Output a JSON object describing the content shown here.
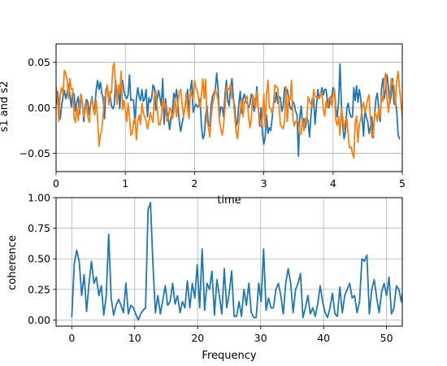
{
  "chart_data": [
    {
      "type": "line",
      "title": "",
      "xlabel": "time",
      "ylabel": "s1 and s2",
      "xlim": [
        0,
        5
      ],
      "ylim": [
        -0.07,
        0.07
      ],
      "grid": true,
      "x_ticks": [
        "0",
        "1",
        "2",
        "3",
        "4",
        "5"
      ],
      "y_ticks": [
        "−0.05",
        "0.00",
        "0.05"
      ],
      "x_start": 0,
      "x_step": 0.02,
      "series": [
        {
          "color": "#1f77b4",
          "values": [
            0.004,
            0.018,
            0.006,
            -0.012,
            0.002,
            0.012,
            0.019,
            0.01,
            0.016,
            0.026,
            0.014,
            0.001,
            0.017,
            0.015,
            -0.004,
            0.006,
            0.012,
            -0.007,
            0.015,
            0.005,
            -0.015,
            0.002,
            0.009,
            0.006,
            -0.008,
            0.005,
            0.012,
            -0.002,
            0.001,
            0.02,
            0.03,
            0.02,
            0.028,
            0.016,
            0.01,
            -0.012,
            0.02,
            0.024,
            0.008,
            0.013,
            0.002,
            -0.001,
            0.003,
            0.03,
            0.012,
            0.021,
            -0.001,
            0.025,
            0.03,
            0.018,
            0.013,
            0.01,
            0.014,
            0.036,
            0.008,
            0.009,
            0.008,
            -0.018,
            0.01,
            0.022,
            0.012,
            0.008,
            0.02,
            0.007,
            0.01,
            0.02,
            -0.01,
            0.011,
            0.006,
            0.01,
            0.025,
            0.022,
            -0.003,
            0.009,
            0.019,
            0.011,
            0.002,
            0.032,
            -0.018,
            0.01,
            -0.004,
            -0.01,
            -0.024,
            -0.011,
            -0.005,
            0.016,
            0.01,
            0.02,
            0.003,
            -0.016,
            -0.026,
            -0.017,
            -0.01,
            0.0,
            0.01,
            0.02,
            -0.01,
            0.02,
            0.03,
            -0.005,
            0.001,
            0.004,
            0.001,
            0.002,
            0.01,
            -0.021,
            -0.034,
            -0.03,
            -0.008,
            0.002,
            -0.02,
            -0.02,
            0.003,
            0.013,
            0.016,
            0.021,
            0.038,
            0.02,
            -0.01,
            0.001,
            0.0,
            -0.01,
            0.015,
            0.03,
            0.008,
            0.002,
            0.022,
            0.032,
            0.011,
            0.001,
            -0.02,
            -0.015,
            0.005,
            0.018,
            -0.006,
            0.01,
            0.015,
            0.006,
            0.005,
            0.0,
            0.004,
            0.015,
            0.01,
            -0.004,
            0.005,
            0.023,
            0.0,
            -0.02,
            0.0,
            -0.028,
            -0.04,
            -0.032,
            -0.008,
            -0.028,
            -0.022,
            -0.025,
            -0.012,
            0.005,
            0.006,
            0.017,
            0.005,
            0.012,
            0.011,
            -0.004,
            0.002,
            0.022,
            0.016,
            0.02,
            0.01,
            0.0,
            -0.002,
            0.007,
            0.004,
            -0.004,
            -0.008,
            -0.053,
            -0.01,
            0.002,
            -0.02,
            -0.012,
            -0.022,
            -0.01,
            -0.015,
            -0.032,
            -0.01,
            0.01,
            0.01,
            -0.018,
            0.002,
            0.02,
            0.01,
            0.014,
            0.022,
            0.014,
            0.02,
            0.02,
            0.005,
            0.0,
            0.01,
            0.012,
            0.022,
            0.02,
            -0.001,
            -0.01,
            0.006,
            0.048,
            0.005,
            -0.02,
            -0.034,
            -0.025,
            0.0,
            0.005,
            -0.006,
            -0.01,
            -0.01,
            0.022,
            0.008,
            0.024,
            0.006,
            0.02,
            0.01,
            -0.011,
            -0.031,
            -0.003,
            -0.01,
            -0.015,
            -0.028,
            -0.021,
            -0.01,
            -0.033,
            -0.006,
            0.01,
            0.016,
            -0.002,
            -0.015,
            0.021,
            0.032,
            0.01,
            0.021,
            0.036,
            0.022,
            0.005,
            0.014,
            0.032,
            0.004,
            0.009,
            -0.004,
            -0.03,
            -0.034
          ]
        },
        {
          "color": "#ff7f0e",
          "values": [
            0.022,
            0.01,
            -0.015,
            0.015,
            0.022,
            0.015,
            0.041,
            0.038,
            0.03,
            0.01,
            0.032,
            0.02,
            0.021,
            -0.011,
            -0.016,
            0.002,
            -0.014,
            0.003,
            0.015,
            0.005,
            -0.01,
            -0.004,
            0.005,
            -0.01,
            -0.016,
            0.003,
            0.01,
            -0.003,
            -0.008,
            0.008,
            -0.012,
            -0.042,
            -0.03,
            -0.024,
            -0.007,
            0.012,
            0.014,
            0.025,
            0.003,
            0.018,
            0.016,
            0.045,
            0.049,
            0.022,
            0.004,
            0.025,
            0.016,
            0.04,
            -0.002,
            0.008,
            -0.002,
            -0.015,
            0.005,
            -0.01,
            -0.03,
            -0.028,
            -0.014,
            -0.012,
            -0.035,
            -0.015,
            -0.008,
            -0.018,
            0.005,
            -0.005,
            -0.01,
            -0.015,
            -0.023,
            -0.015,
            -0.005,
            -0.011,
            -0.016,
            0.013,
            0.019,
            0.0,
            -0.018,
            -0.019,
            -0.01,
            0.01,
            0.0,
            0.004,
            -0.015,
            -0.012,
            0.0,
            -0.002,
            -0.012,
            -0.005,
            0.01,
            -0.01,
            0.005,
            0.018,
            0.02,
            0.005,
            -0.01,
            0.0,
            0.016,
            -0.002,
            -0.012,
            0.018,
            0.013,
            0.01,
            0.03,
            0.022,
            0.018,
            0.009,
            0.0,
            0.014,
            0.032,
            0.01,
            0.031,
            -0.015,
            -0.021,
            -0.032,
            -0.01,
            0.004,
            0.011,
            0.02,
            0.015,
            0.008,
            -0.015,
            -0.023,
            -0.03,
            -0.018,
            0.0,
            0.023,
            0.021,
            0.02,
            0.026,
            0.01,
            0.01,
            -0.01,
            -0.026,
            -0.034,
            -0.015,
            -0.004,
            0.01,
            -0.01,
            0.005,
            0.01,
            0.013,
            -0.01,
            -0.022,
            -0.012,
            0.014,
            0.01,
            0.0,
            0.018,
            -0.001,
            -0.014,
            -0.021,
            -0.01,
            0.015,
            -0.021,
            0.015,
            0.03,
            0.0,
            -0.001,
            -0.006,
            0.004,
            0.025,
            0.023,
            0.022,
            0.002,
            -0.019,
            -0.021,
            -0.023,
            -0.015,
            0.023,
            -0.015,
            0.012,
            0.009,
            0.03,
            -0.011,
            -0.02,
            -0.015,
            -0.015,
            -0.015,
            -0.03,
            -0.028,
            -0.012,
            -0.025,
            -0.012,
            -0.014,
            0.012,
            0.008,
            0.004,
            0.0,
            0.02,
            0.012,
            0.012,
            0.012,
            0.01,
            0.015,
            0.017,
            -0.003,
            -0.009,
            0.007,
            0.0,
            0.01,
            0.012,
            0.002,
            0.013,
            0.02,
            -0.014,
            -0.019,
            -0.01,
            -0.03,
            0.0,
            -0.01,
            -0.024,
            -0.014,
            -0.012,
            -0.031,
            -0.044,
            -0.043,
            -0.05,
            -0.055,
            -0.016,
            -0.009,
            -0.038,
            -0.018,
            -0.013,
            0.0,
            0.006,
            -0.005,
            0.0,
            0.01,
            0.014,
            -0.012,
            -0.032,
            -0.03,
            -0.005,
            -0.008,
            -0.015,
            0.0,
            -0.01,
            0.013,
            0.007,
            0.03,
            0.038,
            0.01,
            -0.005,
            0.011,
            0.032,
            0.026,
            0.024,
            0.003,
            0.03,
            0.04,
            0.021,
            0.005,
            -0.01,
            -0.023,
            -0.01,
            -0.03
          ]
        }
      ]
    },
    {
      "type": "line",
      "title": "",
      "xlabel": "Frequency",
      "ylabel": "coherence",
      "xlim": [
        -2.5,
        52.5
      ],
      "ylim": [
        -0.05,
        1.0
      ],
      "grid": true,
      "x_ticks": [
        "0",
        "10",
        "20",
        "30",
        "40",
        "50"
      ],
      "y_ticks": [
        "0.00",
        "0.25",
        "0.50",
        "0.75",
        "1.00"
      ],
      "x_start": 0,
      "x_step": 0.390625,
      "series": [
        {
          "color": "#1f77b4",
          "values": [
            0.03,
            0.46,
            0.57,
            0.48,
            0.2,
            0.37,
            0.07,
            0.3,
            0.48,
            0.3,
            0.35,
            0.2,
            0.28,
            0.04,
            0.2,
            0.7,
            0.18,
            0.04,
            0.12,
            0.17,
            0.12,
            0.06,
            0.3,
            0.05,
            0.12,
            0.1,
            0.05,
            0.0,
            0.05,
            0.08,
            0.1,
            0.9,
            0.96,
            0.45,
            0.06,
            0.2,
            0.05,
            0.16,
            0.28,
            0.12,
            0.15,
            0.3,
            0.13,
            0.2,
            0.06,
            0.15,
            0.1,
            0.32,
            0.1,
            0.3,
            0.18,
            0.45,
            0.1,
            0.58,
            0.08,
            0.3,
            0.25,
            0.4,
            0.04,
            0.33,
            0.2,
            0.05,
            0.42,
            0.1,
            0.22,
            0.4,
            0.03,
            0.03,
            0.15,
            0.03,
            0.25,
            0.12,
            0.3,
            0.06,
            0.02,
            0.02,
            0.3,
            0.15,
            0.58,
            0.08,
            0.18,
            0.1,
            0.1,
            0.25,
            0.3,
            0.2,
            0.05,
            0.3,
            0.42,
            0.3,
            0.06,
            0.25,
            0.3,
            0.38,
            0.02,
            0.1,
            0.2,
            0.05,
            0.1,
            0.03,
            0.13,
            0.28,
            0.15,
            0.06,
            0.02,
            0.1,
            0.22,
            0.05,
            0.03,
            0.27,
            0.06,
            0.2,
            0.25,
            0.3,
            0.18,
            0.2,
            0.06,
            0.15,
            0.5,
            0.48,
            0.53,
            0.05,
            0.25,
            0.33,
            0.18,
            0.06,
            0.23,
            0.3,
            0.2,
            0.35,
            0.05,
            0.1,
            0.28,
            0.25,
            0.15,
            0.3,
            0.3,
            0.18,
            0.2,
            0.1,
            0.06,
            0.02,
            0.25,
            0.3,
            0.12,
            0.04,
            0.25,
            0.05,
            0.18,
            0.12,
            0.15,
            0.02,
            0.12,
            0.28,
            0.2,
            0.1,
            0.4,
            0.03,
            0.2,
            0.1,
            0.35,
            0.08,
            0.22,
            0.28,
            0.12,
            0.1,
            0.1,
            0.12,
            0.58,
            0.3,
            0.25,
            0.05,
            0.17,
            0.28,
            0.15,
            0.4,
            0.1,
            0.05,
            0.25,
            0.15,
            0.3,
            0.1,
            0.02,
            0.15,
            0.35,
            0.03,
            0.1,
            0.25,
            0.12,
            0.1,
            0.05,
            0.02,
            0.1
          ]
        }
      ]
    }
  ]
}
